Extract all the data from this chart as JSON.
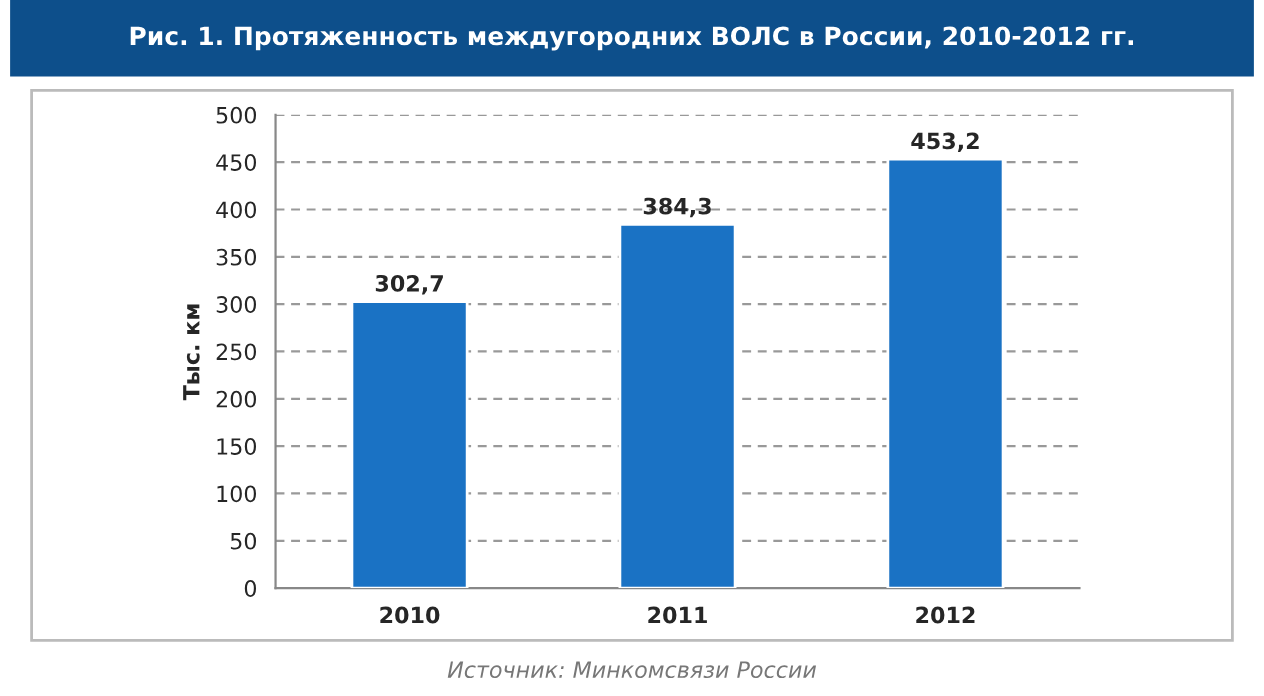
{
  "chart_data": {
    "type": "bar",
    "title": "Рис. 1. Протяженность междугородних ВОЛС в России, 2010-2012 гг.",
    "ylabel": "Тыс. км",
    "categories": [
      "2010",
      "2011",
      "2012"
    ],
    "values": [
      302.7,
      384.3,
      453.2
    ],
    "value_labels": [
      "302,7",
      "384,3",
      "453,2"
    ],
    "color": "#1a72c4",
    "ylim": [
      0,
      500
    ],
    "yticks": [
      0,
      50,
      100,
      150,
      200,
      250,
      300,
      350,
      400,
      450,
      500
    ],
    "grid": "y",
    "annotations": [
      "Источник: Минкомсвязи России"
    ]
  }
}
